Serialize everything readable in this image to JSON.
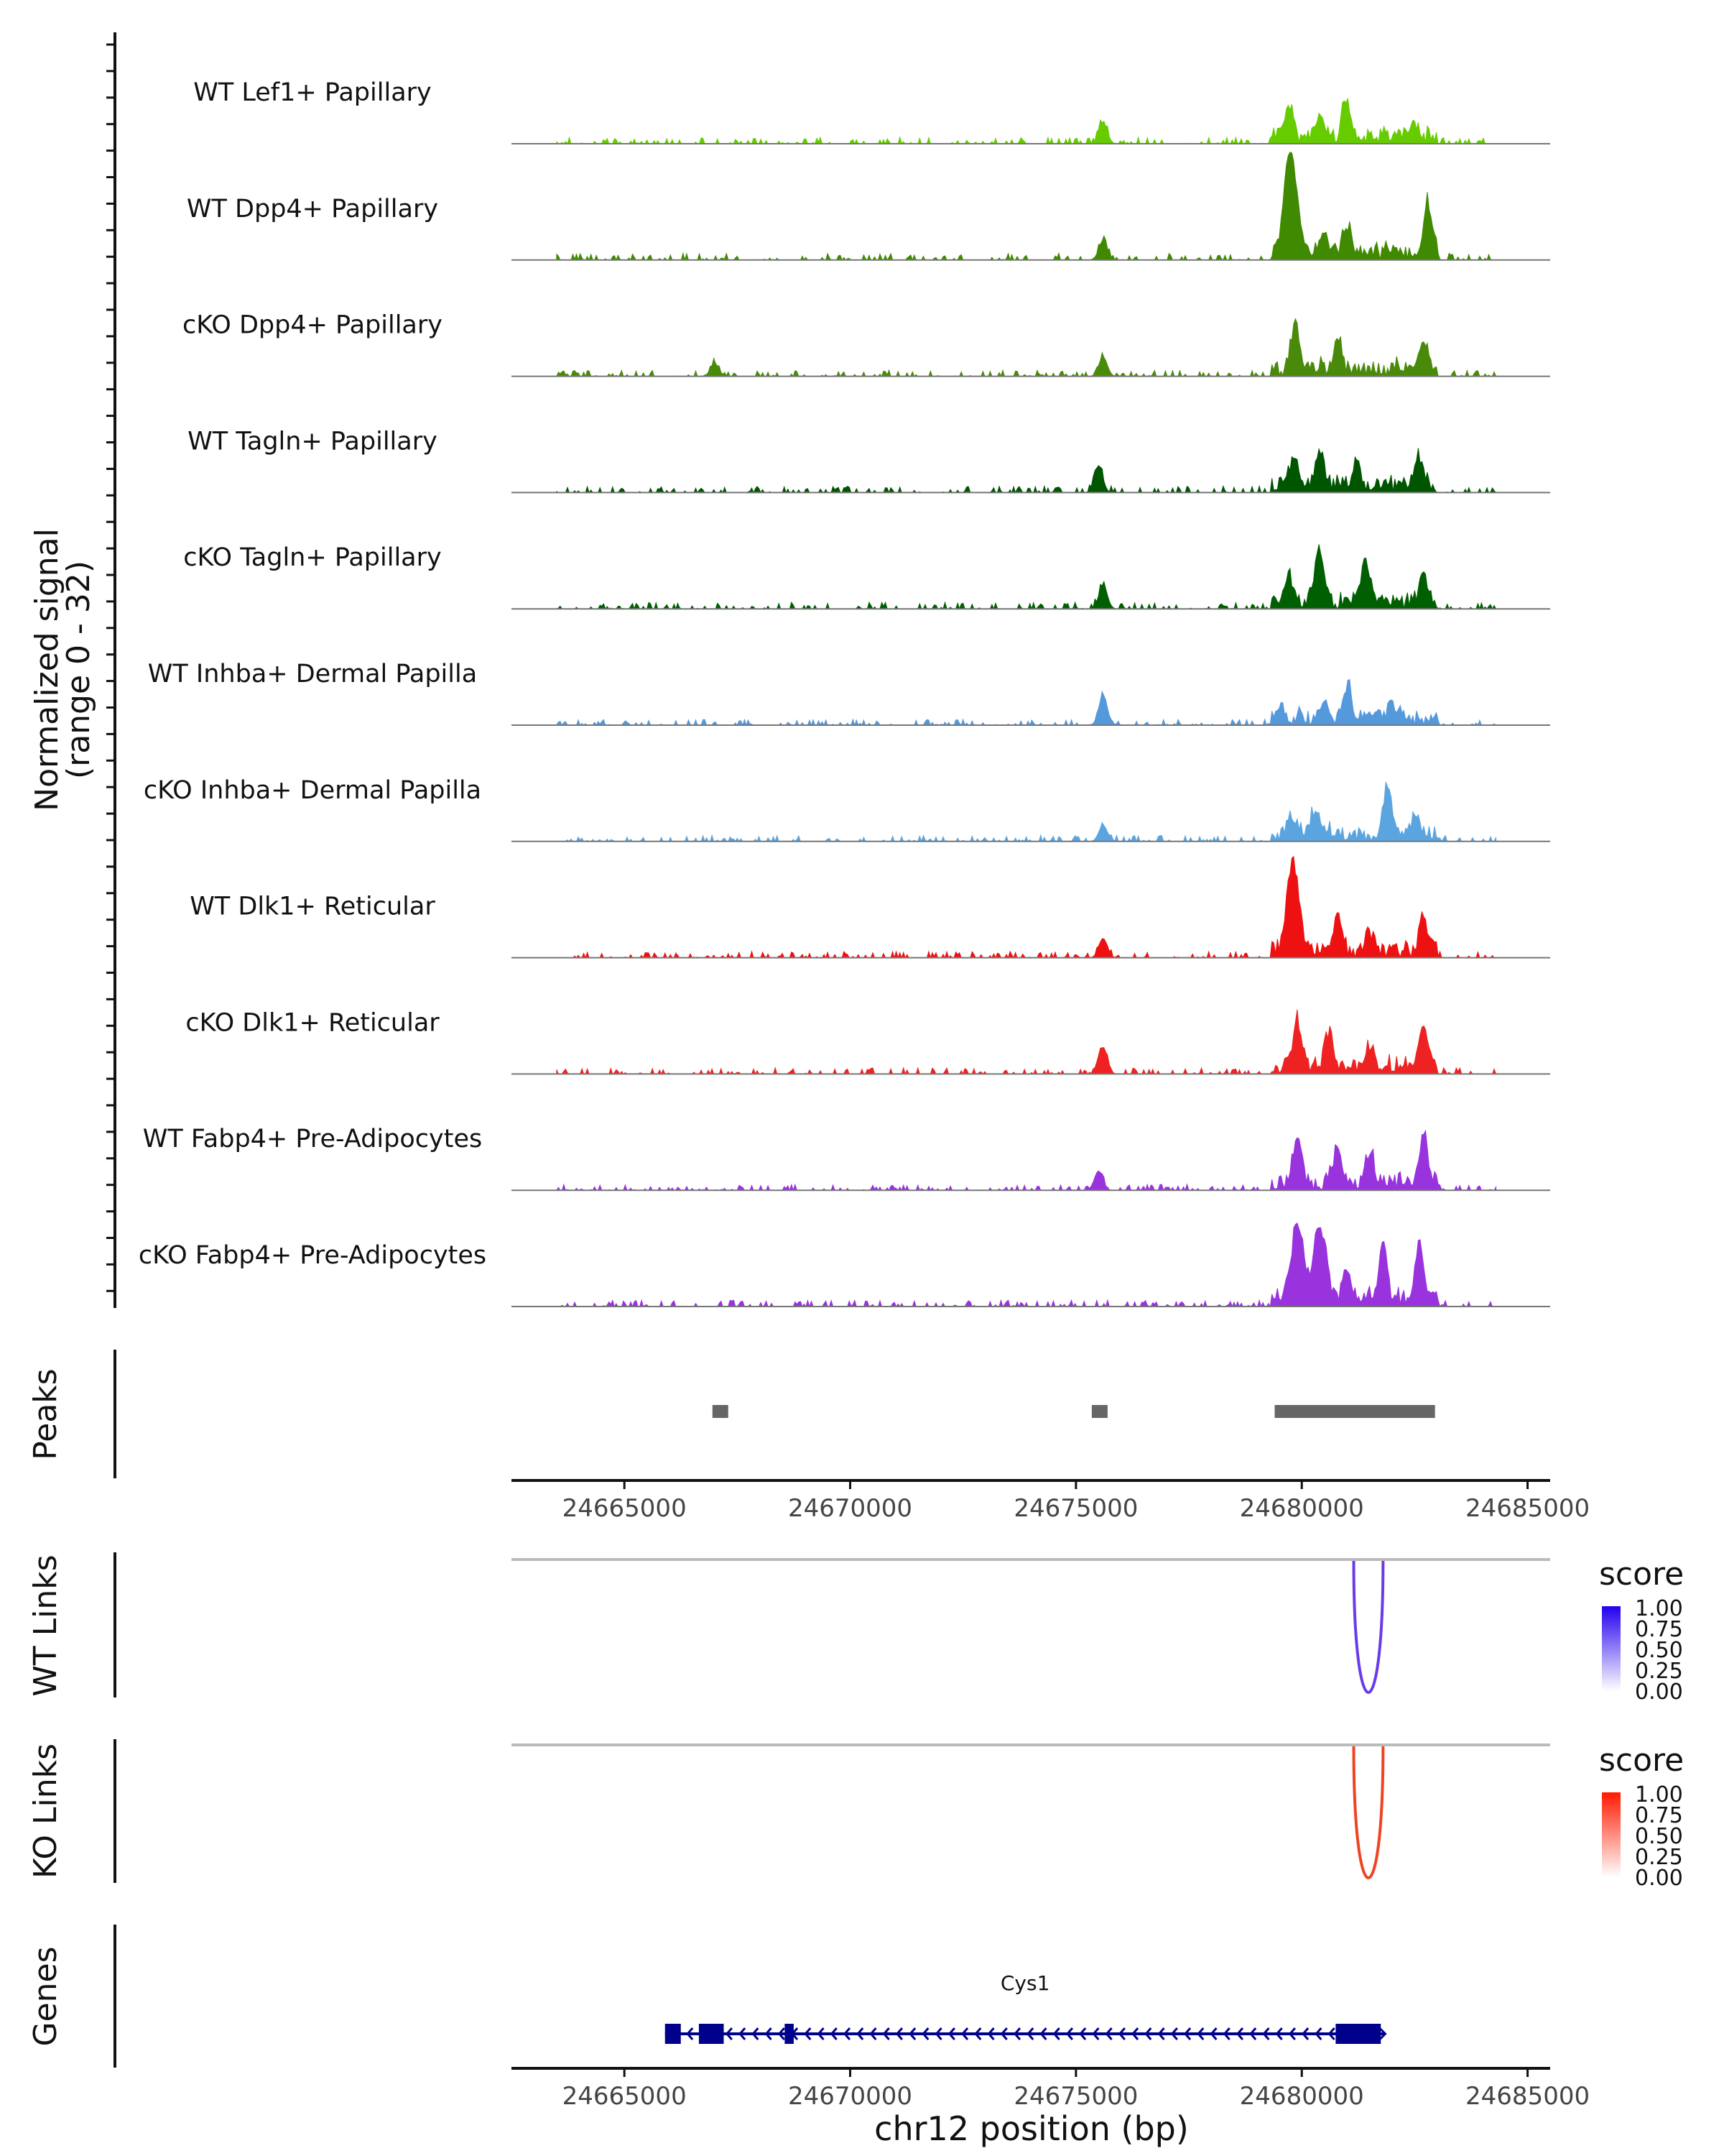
{
  "chart_data": {
    "type": "coverage-track",
    "region": {
      "chrom": "chr12",
      "start": 24662500,
      "end": 24685500
    },
    "coverage": {
      "ylabel_line1": "Normalized signal",
      "ylabel_line2": "(range 0 - 32)",
      "tracks": [
        {
          "name": "WT Lef1+ Papillary",
          "color": "#66cc00",
          "scale": 0.5,
          "seed": 11,
          "peaks": [
            [
              24675600,
              0.2
            ],
            [
              24679700,
              0.28
            ],
            [
              24681000,
              0.35
            ],
            [
              24680400,
              0.18
            ],
            [
              24682500,
              0.1
            ]
          ]
        },
        {
          "name": "WT Dpp4+ Papillary",
          "color": "#3f8a00",
          "scale": 0.55,
          "seed": 23,
          "peaks": [
            [
              24679750,
              1.0
            ],
            [
              24681000,
              0.25
            ],
            [
              24682800,
              0.45
            ],
            [
              24675600,
              0.18
            ],
            [
              24680500,
              0.2
            ]
          ]
        },
        {
          "name": "cKO Dpp4+ Papillary",
          "color": "#4a8a0a",
          "scale": 0.45,
          "seed": 37,
          "peaks": [
            [
              24679850,
              0.4
            ],
            [
              24680800,
              0.3
            ],
            [
              24682700,
              0.3
            ],
            [
              24675600,
              0.18
            ],
            [
              24667000,
              0.12
            ]
          ]
        },
        {
          "name": "WT Tagln+ Papillary",
          "color": "#005500",
          "scale": 0.5,
          "seed": 41,
          "peaks": [
            [
              24680400,
              0.35
            ],
            [
              24679800,
              0.22
            ],
            [
              24681200,
              0.22
            ],
            [
              24682600,
              0.28
            ],
            [
              24675500,
              0.25
            ]
          ]
        },
        {
          "name": "cKO Tagln+ Papillary",
          "color": "#005f00",
          "scale": 0.5,
          "seed": 53,
          "peaks": [
            [
              24680400,
              0.5
            ],
            [
              24679700,
              0.25
            ],
            [
              24681400,
              0.35
            ],
            [
              24682700,
              0.25
            ],
            [
              24675600,
              0.22
            ]
          ]
        },
        {
          "name": "WT Inhba+ Dermal Papilla",
          "color": "#5599dd",
          "scale": 0.4,
          "seed": 61,
          "peaks": [
            [
              24675600,
              0.28
            ],
            [
              24681000,
              0.3
            ],
            [
              24680500,
              0.15
            ],
            [
              24679500,
              0.1
            ],
            [
              24682000,
              0.1
            ]
          ]
        },
        {
          "name": "cKO Inhba+ Dermal Papilla",
          "color": "#5aa5e0",
          "scale": 0.45,
          "seed": 71,
          "peaks": [
            [
              24681900,
              0.5
            ],
            [
              24680300,
              0.22
            ],
            [
              24679800,
              0.18
            ],
            [
              24682500,
              0.15
            ],
            [
              24675600,
              0.15
            ]
          ]
        },
        {
          "name": "WT Dlk1+ Reticular",
          "color": "#ee1111",
          "scale": 0.5,
          "seed": 83,
          "peaks": [
            [
              24679800,
              0.82
            ],
            [
              24680800,
              0.3
            ],
            [
              24682700,
              0.32
            ],
            [
              24675600,
              0.18
            ],
            [
              24681500,
              0.18
            ]
          ]
        },
        {
          "name": "cKO Dlk1+ Reticular",
          "color": "#ee2222",
          "scale": 0.45,
          "seed": 97,
          "peaks": [
            [
              24679900,
              0.45
            ],
            [
              24680600,
              0.32
            ],
            [
              24682700,
              0.42
            ],
            [
              24675600,
              0.25
            ],
            [
              24681500,
              0.2
            ]
          ]
        },
        {
          "name": "WT Fabp4+ Pre-Adipocytes",
          "color": "#9933dd",
          "scale": 0.45,
          "seed": 101,
          "peaks": [
            [
              24679900,
              0.45
            ],
            [
              24681500,
              0.3
            ],
            [
              24682700,
              0.5
            ],
            [
              24680800,
              0.35
            ],
            [
              24675500,
              0.18
            ]
          ]
        },
        {
          "name": "cKO Fabp4+ Pre-Adipocytes",
          "color": "#9933dd",
          "scale": 0.5,
          "seed": 113,
          "peaks": [
            [
              24679900,
              0.65
            ],
            [
              24680400,
              0.68
            ],
            [
              24681800,
              0.5
            ],
            [
              24682600,
              0.45
            ],
            [
              24681000,
              0.28
            ]
          ]
        }
      ]
    },
    "peaks_track": {
      "label": "Peaks",
      "color": "#666666",
      "regions": [
        [
          24666950,
          24667300
        ],
        [
          24675350,
          24675700
        ],
        [
          24679400,
          24682950
        ]
      ]
    },
    "x_axis": {
      "ticks": [
        24665000,
        24670000,
        24675000,
        24680000,
        24685000
      ],
      "tick_labels": [
        "24665000",
        "24670000",
        "24675000",
        "24680000",
        "24685000"
      ],
      "xlabel": "chr12 position (bp)"
    },
    "links": [
      {
        "label": "WT Links",
        "color": "#6a3be8",
        "legend_color": "#2200ee",
        "from": 24681150,
        "to": 24681800,
        "score": 0.75
      },
      {
        "label": "KO Links",
        "color": "#ee4422",
        "legend_color": "#ff1a00",
        "from": 24681150,
        "to": 24681800,
        "score": 0.85
      }
    ],
    "links_legend": {
      "title": "score",
      "ticks": [
        "1.00",
        "0.75",
        "0.50",
        "0.25",
        "0.00"
      ]
    },
    "genes": {
      "label": "Genes",
      "color": "#00008b",
      "gene": "Cys1",
      "strand": "-",
      "start": 24665900,
      "end": 24681850,
      "exons": [
        [
          24665900,
          24666250
        ],
        [
          24666650,
          24667200
        ],
        [
          24668550,
          24668750
        ],
        [
          24680750,
          24681750
        ]
      ]
    }
  }
}
